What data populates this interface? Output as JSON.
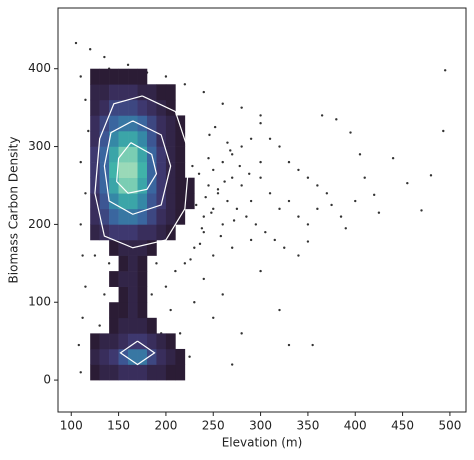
{
  "chart_data": {
    "type": "scatter",
    "xlabel": "Elevation (m)",
    "ylabel": "Biomass Carbon Density",
    "xlim": [
      86,
      517
    ],
    "ylim": [
      -41,
      478
    ],
    "xticks": [
      100,
      150,
      200,
      250,
      300,
      350,
      400,
      450,
      500
    ],
    "yticks": [
      0,
      100,
      200,
      300,
      400
    ],
    "point_color": "#333333",
    "x": [
      105,
      120,
      135,
      495,
      493,
      455,
      480,
      470,
      440,
      425,
      420,
      395,
      380,
      365,
      350,
      340,
      300,
      320,
      330,
      355,
      270,
      280,
      250,
      260,
      240,
      230,
      215,
      225,
      110,
      108,
      112,
      115,
      112,
      110,
      115,
      110,
      118,
      115,
      110,
      140,
      160,
      180,
      200,
      220,
      240,
      260,
      280,
      300,
      310,
      320,
      330,
      340,
      350,
      360,
      370,
      375,
      385,
      390,
      400,
      410,
      405,
      300,
      290,
      280,
      270,
      260,
      250,
      245,
      255,
      265,
      275,
      285,
      295,
      305,
      315,
      325,
      290,
      270,
      250,
      240,
      260,
      280,
      300,
      310,
      320,
      330,
      340,
      350,
      360,
      300,
      290,
      270,
      250,
      240,
      230,
      220,
      210,
      200,
      205,
      195,
      190,
      185,
      140,
      135,
      130,
      125,
      140,
      235,
      245,
      255,
      265,
      232,
      238,
      248,
      228,
      242,
      252,
      262,
      272,
      236,
      246,
      226,
      258,
      268,
      278,
      288
    ],
    "y": [
      433,
      425,
      415,
      398,
      320,
      253,
      263,
      218,
      285,
      215,
      238,
      318,
      335,
      340,
      178,
      160,
      140,
      90,
      45,
      45,
      20,
      60,
      80,
      110,
      130,
      100,
      60,
      30,
      10,
      45,
      80,
      120,
      160,
      200,
      240,
      280,
      320,
      360,
      390,
      400,
      405,
      395,
      390,
      380,
      370,
      355,
      350,
      340,
      310,
      300,
      280,
      270,
      260,
      250,
      240,
      225,
      210,
      195,
      230,
      260,
      290,
      330,
      310,
      300,
      290,
      280,
      270,
      250,
      240,
      230,
      220,
      210,
      200,
      190,
      180,
      170,
      180,
      170,
      160,
      190,
      200,
      250,
      260,
      240,
      220,
      230,
      210,
      200,
      220,
      280,
      230,
      260,
      220,
      210,
      170,
      150,
      140,
      120,
      90,
      60,
      150,
      110,
      150,
      110,
      70,
      160,
      190,
      265,
      285,
      245,
      305,
      225,
      195,
      215,
      275,
      235,
      325,
      255,
      205,
      175,
      315,
      155,
      185,
      295,
      275,
      265
    ],
    "hist": {
      "x_edges": [
        120,
        130,
        140,
        150,
        160,
        170,
        180,
        190,
        200,
        210,
        220,
        230,
        240
      ],
      "y_edges": [
        0,
        20,
        40,
        60,
        80,
        100,
        120,
        140,
        160,
        180,
        200,
        220,
        240,
        260,
        280,
        300,
        320,
        340,
        360,
        380,
        400
      ],
      "counts": [
        [
          1,
          2,
          2,
          3,
          3,
          3,
          2,
          2,
          1,
          1,
          null,
          null
        ],
        [
          2,
          3,
          4,
          6,
          8,
          8,
          5,
          3,
          2,
          1,
          null,
          null
        ],
        [
          1,
          2,
          2,
          3,
          4,
          4,
          3,
          2,
          1,
          null,
          null,
          null
        ],
        [
          null,
          null,
          1,
          2,
          2,
          2,
          1,
          null,
          null,
          null,
          null,
          null
        ],
        [
          null,
          null,
          1,
          1,
          2,
          1,
          null,
          null,
          null,
          null,
          null,
          null
        ],
        [
          null,
          null,
          null,
          1,
          2,
          1,
          null,
          null,
          null,
          null,
          null,
          null
        ],
        [
          null,
          null,
          1,
          2,
          2,
          1,
          null,
          null,
          null,
          null,
          null,
          null
        ],
        [
          null,
          null,
          null,
          1,
          2,
          1,
          null,
          null,
          null,
          null,
          null,
          null
        ],
        [
          null,
          null,
          1,
          2,
          2,
          2,
          1,
          null,
          null,
          null,
          null,
          null
        ],
        [
          2,
          3,
          4,
          4,
          4,
          3,
          3,
          2,
          1,
          null,
          null,
          null
        ],
        [
          3,
          5,
          7,
          8,
          8,
          7,
          5,
          3,
          2,
          1,
          null,
          null
        ],
        [
          3,
          6,
          9,
          11,
          11,
          9,
          6,
          4,
          2,
          1,
          1,
          null
        ],
        [
          4,
          7,
          11,
          14,
          14,
          11,
          7,
          4,
          2,
          1,
          1,
          null
        ],
        [
          4,
          7,
          12,
          15,
          15,
          12,
          7,
          4,
          2,
          1,
          null,
          null
        ],
        [
          4,
          7,
          11,
          14,
          14,
          11,
          7,
          4,
          2,
          1,
          null,
          null
        ],
        [
          3,
          6,
          9,
          11,
          11,
          9,
          6,
          3,
          2,
          1,
          null,
          null
        ],
        [
          3,
          5,
          7,
          8,
          8,
          7,
          5,
          3,
          2,
          1,
          null,
          null
        ],
        [
          2,
          3,
          5,
          5,
          5,
          4,
          3,
          2,
          1,
          null,
          null,
          null
        ],
        [
          2,
          2,
          3,
          3,
          3,
          2,
          2,
          1,
          1,
          null,
          null,
          null
        ],
        [
          1,
          1,
          1,
          1,
          1,
          1,
          null,
          null,
          null,
          null,
          null,
          null
        ]
      ],
      "colormap": [
        "#2b1c35",
        "#3e356b",
        "#3b5f9e",
        "#348fa7",
        "#41b6a9",
        "#9ad9b8"
      ]
    },
    "contour_color": "#ffffff",
    "contours": [
      {
        "x": [
          175,
          210,
          225,
          220,
          200,
          165,
          135,
          125,
          130,
          145,
          175
        ],
        "y": [
          365,
          345,
          290,
          220,
          180,
          170,
          185,
          240,
          310,
          355,
          365
        ]
      },
      {
        "x": [
          165,
          195,
          205,
          195,
          165,
          140,
          135,
          142,
          165
        ],
        "y": [
          333,
          315,
          275,
          225,
          213,
          230,
          275,
          318,
          333
        ]
      },
      {
        "x": [
          163,
          185,
          190,
          180,
          160,
          148,
          150,
          163
        ],
        "y": [
          305,
          290,
          265,
          245,
          240,
          255,
          285,
          305
        ]
      },
      {
        "x": [
          170,
          188,
          170,
          152,
          170
        ],
        "y": [
          50,
          35,
          20,
          35,
          50
        ]
      }
    ]
  }
}
